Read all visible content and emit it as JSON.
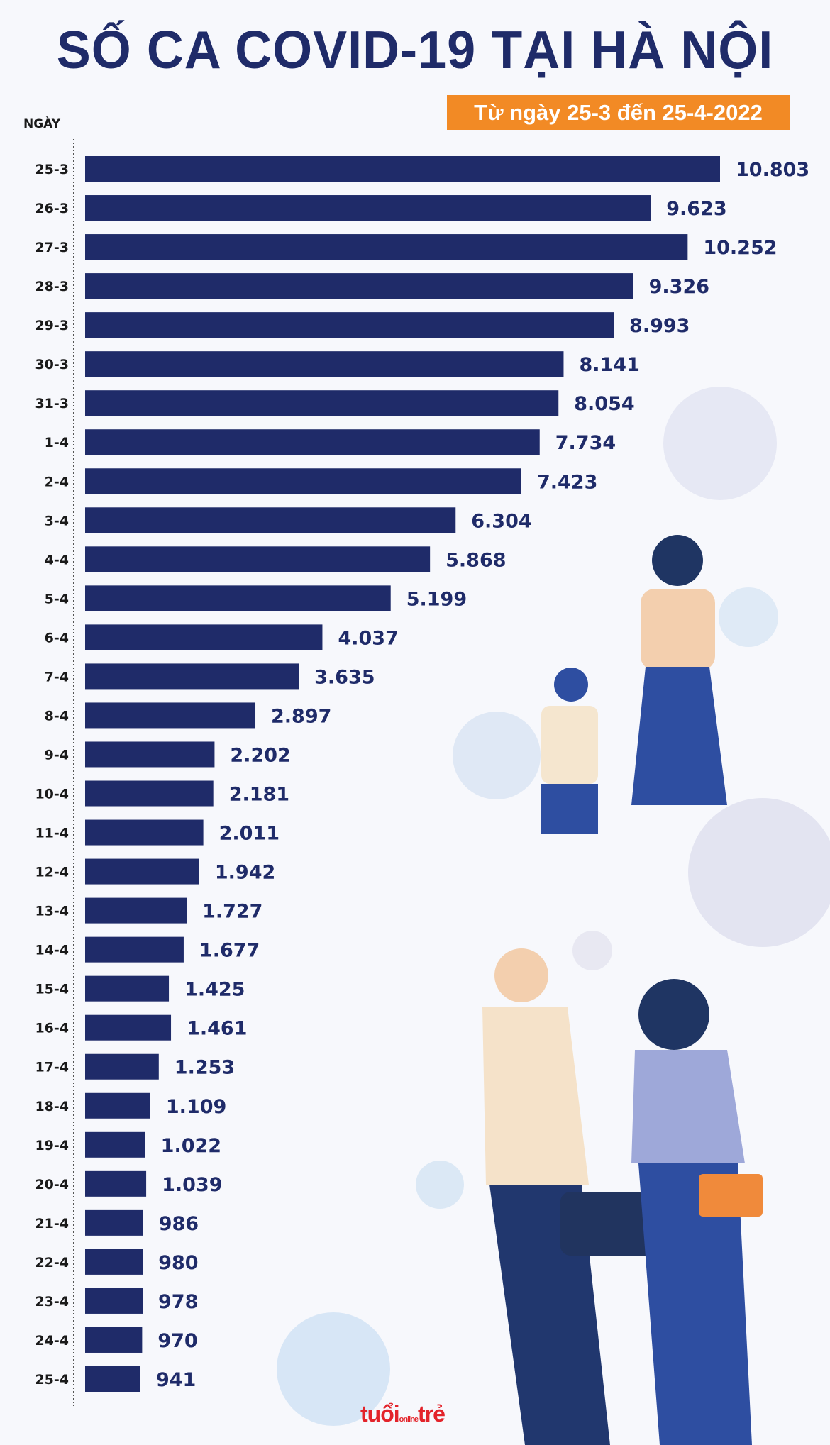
{
  "chart_data": {
    "type": "bar",
    "orientation": "horizontal",
    "title": "SỐ CA COVID-19 TẠI HÀ NỘI",
    "subtitle": "Từ ngày 25-3 đến 25-4-2022",
    "ylabel": "NGÀY",
    "xlabel": "",
    "categories": [
      "25-3",
      "26-3",
      "27-3",
      "28-3",
      "29-3",
      "30-3",
      "31-3",
      "1-4",
      "2-4",
      "3-4",
      "4-4",
      "5-4",
      "6-4",
      "7-4",
      "8-4",
      "9-4",
      "10-4",
      "11-4",
      "12-4",
      "13-4",
      "14-4",
      "15-4",
      "16-4",
      "17-4",
      "18-4",
      "19-4",
      "20-4",
      "21-4",
      "22-4",
      "23-4",
      "24-4",
      "25-4"
    ],
    "values": [
      10803,
      9623,
      10252,
      9326,
      8993,
      8141,
      8054,
      7734,
      7423,
      6304,
      5868,
      5199,
      4037,
      3635,
      2897,
      2202,
      2181,
      2011,
      1942,
      1727,
      1677,
      1425,
      1461,
      1253,
      1109,
      1022,
      1039,
      986,
      980,
      978,
      970,
      941
    ],
    "labels": [
      "10.803",
      "9.623",
      "10.252",
      "9.326",
      "8.993",
      "8.141",
      "8.054",
      "7.734",
      "7.423",
      "6.304",
      "5.868",
      "5.199",
      "4.037",
      "3.635",
      "2.897",
      "2.202",
      "2.181",
      "2.011",
      "1.942",
      "1.727",
      "1.677",
      "1.425",
      "1.461",
      "1.253",
      "1.109",
      "1.022",
      "1.039",
      "986",
      "980",
      "978",
      "970",
      "941"
    ],
    "grid": false,
    "bar_color": "#1f2b69",
    "accent_color": "#f28a25"
  },
  "branding": {
    "logo": "tuổi trẻ online"
  }
}
